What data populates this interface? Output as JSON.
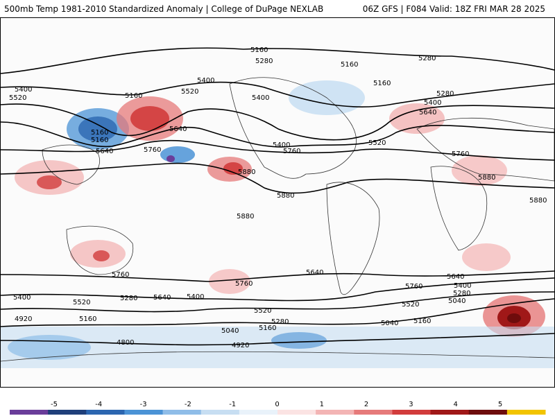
{
  "header": {
    "left_title": "500mb Temp 1981-2010 Standardized Anomaly | College of DuPage NEXLAB",
    "right_title": "06Z GFS | F084 Valid: 18Z FRI MAR 28 2025"
  },
  "contour_labels": [
    "5160",
    "5280",
    "5160",
    "5400",
    "5520",
    "5400",
    "5520",
    "5160",
    "5280",
    "5640",
    "5400",
    "5160",
    "5280",
    "5400",
    "5640",
    "5760",
    "5520",
    "5160",
    "5160",
    "5400",
    "5760",
    "5880",
    "5760",
    "5640",
    "5880",
    "5880",
    "5880",
    "5760",
    "5760",
    "5880",
    "5640",
    "5760",
    "5640",
    "5400",
    "5280",
    "5040",
    "5520",
    "5400",
    "5520",
    "5280",
    "5640",
    "5400",
    "5520",
    "5160",
    "4920",
    "5160",
    "5280",
    "5040",
    "5160",
    "5040",
    "4800",
    "4920"
  ],
  "colorbar": {
    "ticks": [
      "-5",
      "-4",
      "-3",
      "-2",
      "-1",
      "0",
      "1",
      "2",
      "3",
      "4",
      "5"
    ],
    "colors": [
      "#6a3d9a",
      "#1f3f7a",
      "#2c66b0",
      "#4b93d6",
      "#8fbde8",
      "#c7def2",
      "#e9f2fa",
      "#fbe3e3",
      "#f3b4b4",
      "#e67a7a",
      "#d23c3c",
      "#a01818",
      "#6e0c0c",
      "#f2c400"
    ]
  }
}
